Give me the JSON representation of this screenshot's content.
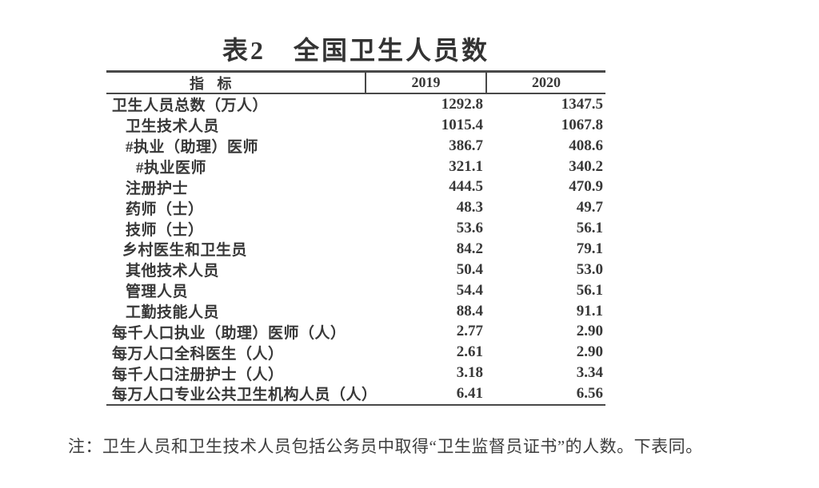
{
  "page": {
    "title": "表2　全国卫生人员数",
    "note": "注：卫生人员和卫生技术人员包括公务员中取得“卫生监督员证书”的人数。下表同。"
  },
  "colors": {
    "text": "#383838",
    "border": "#484848",
    "background": "#ffffff"
  },
  "chart_data": {
    "type": "table",
    "title": "表2 全国卫生人员数",
    "columns": [
      "指 标",
      "2019",
      "2020"
    ],
    "rows": [
      {
        "label": "卫生人员总数（万人）",
        "indent": 0,
        "values": [
          "1292.8",
          "1347.5"
        ]
      },
      {
        "label": "卫生技术人员",
        "indent": 1,
        "values": [
          "1015.4",
          "1067.8"
        ]
      },
      {
        "label": "#执业（助理）医师",
        "indent": 1,
        "values": [
          "386.7",
          "408.6"
        ]
      },
      {
        "label": "#执业医师",
        "indent": 2,
        "values": [
          "321.1",
          "340.2"
        ]
      },
      {
        "label": "注册护士",
        "indent": 1,
        "values": [
          "444.5",
          "470.9"
        ]
      },
      {
        "label": "药师（士）",
        "indent": 1,
        "values": [
          "48.3",
          "49.7"
        ]
      },
      {
        "label": "技师（士）",
        "indent": 1,
        "values": [
          "53.6",
          "56.1"
        ]
      },
      {
        "label": "乡村医生和卫生员",
        "indent": 0.75,
        "values": [
          "84.2",
          "79.1"
        ]
      },
      {
        "label": "其他技术人员",
        "indent": 1,
        "values": [
          "50.4",
          "53.0"
        ]
      },
      {
        "label": "管理人员",
        "indent": 1,
        "values": [
          "54.4",
          "56.1"
        ]
      },
      {
        "label": "工勤技能人员",
        "indent": 1,
        "values": [
          "88.4",
          "91.1"
        ]
      },
      {
        "label": "每千人口执业（助理）医师（人）",
        "indent": 0,
        "values": [
          "2.77",
          "2.90"
        ]
      },
      {
        "label": "每万人口全科医生（人）",
        "indent": 0,
        "values": [
          "2.61",
          "2.90"
        ]
      },
      {
        "label": "每千人口注册护士（人）",
        "indent": 0,
        "values": [
          "3.18",
          "3.34"
        ]
      },
      {
        "label": "每万人口专业公共卫生机构人员（人）",
        "indent": 0,
        "values": [
          "6.41",
          "6.56"
        ]
      }
    ]
  }
}
